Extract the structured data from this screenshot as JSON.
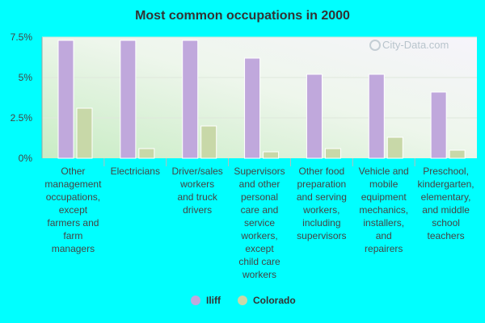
{
  "chart_data": {
    "type": "bar",
    "title": "Most common occupations in 2000",
    "xlabel": "",
    "ylabel": "",
    "ylim": [
      0,
      7.5
    ],
    "yticks": [
      "0%",
      "2.5%",
      "5%",
      "7.5%"
    ],
    "ytick_values": [
      0,
      2.5,
      5,
      7.5
    ],
    "categories": [
      [
        "Other",
        "management",
        "occupations,",
        "except",
        "farmers and",
        "farm",
        "managers"
      ],
      [
        "Electricians"
      ],
      [
        "Driver/sales",
        "workers",
        "and truck",
        "drivers"
      ],
      [
        "Supervisors",
        "and other",
        "personal",
        "care and",
        "service",
        "workers,",
        "except",
        "child care",
        "workers"
      ],
      [
        "Other food",
        "preparation",
        "and serving",
        "workers,",
        "including",
        "supervisors"
      ],
      [
        "Vehicle and",
        "mobile",
        "equipment",
        "mechanics,",
        "installers,",
        "and",
        "repairers"
      ],
      [
        "Preschool,",
        "kindergarten,",
        "elementary,",
        "and middle",
        "school",
        "teachers"
      ]
    ],
    "series": [
      {
        "name": "Iliff",
        "color": "#c0a8dc",
        "values": [
          7.3,
          7.3,
          7.3,
          6.2,
          5.2,
          5.2,
          4.1
        ]
      },
      {
        "name": "Colorado",
        "color": "#c8d8a8",
        "values": [
          3.1,
          0.6,
          2.0,
          0.4,
          0.6,
          1.3,
          0.5
        ]
      }
    ],
    "grid": true,
    "legend_position": "bottom"
  },
  "watermark": "City-Data.com"
}
